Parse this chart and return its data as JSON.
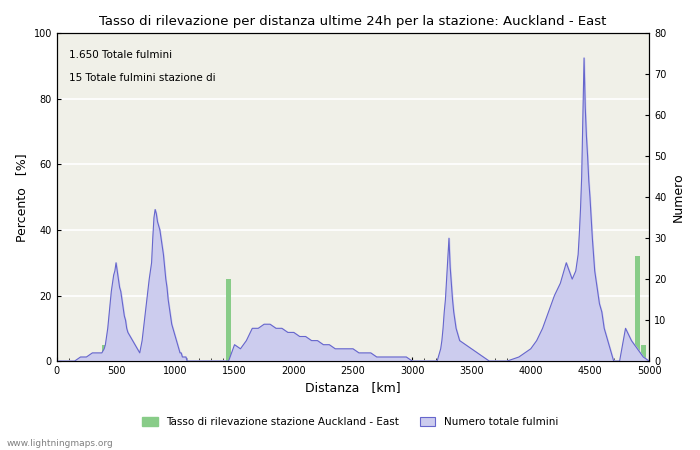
{
  "title": "Tasso di rilevazione per distanza ultime 24h per la stazione: Auckland - East",
  "xlabel": "Distanza   [km]",
  "ylabel_left": "Percento   [%]",
  "ylabel_right": "Numero",
  "annotation1": "1.650 Totale fulmini",
  "annotation2": "15 Totale fulmini stazione di",
  "xlim": [
    0,
    5000
  ],
  "ylim_left": [
    0,
    100
  ],
  "ylim_right": [
    0,
    80
  ],
  "yticks_left": [
    0,
    20,
    40,
    60,
    80,
    100
  ],
  "yticks_right": [
    0,
    10,
    20,
    30,
    40,
    50,
    60,
    70,
    80
  ],
  "xticks": [
    0,
    500,
    1000,
    1500,
    2000,
    2500,
    3000,
    3500,
    4000,
    4500,
    5000
  ],
  "bg_color": "#ffffff",
  "plot_bg_color": "#f0f0e8",
  "grid_color": "#ffffff",
  "blue_line_color": "#6666cc",
  "blue_fill_color": "#ccccee",
  "green_bar_color": "#88cc88",
  "watermark": "www.lightningmaps.org",
  "legend_label1": "Tasso di rilevazione stazione Auckland - East",
  "legend_label2": "Numero totale fulmini",
  "blue_line_x": [
    0,
    50,
    100,
    150,
    200,
    250,
    300,
    350,
    380,
    400,
    410,
    420,
    430,
    440,
    450,
    460,
    470,
    480,
    490,
    500,
    510,
    520,
    530,
    540,
    550,
    560,
    570,
    580,
    590,
    600,
    620,
    640,
    660,
    680,
    700,
    720,
    740,
    760,
    780,
    800,
    810,
    820,
    830,
    840,
    850,
    860,
    870,
    880,
    890,
    900,
    910,
    920,
    930,
    940,
    950,
    960,
    970,
    980,
    990,
    1000,
    1010,
    1020,
    1030,
    1040,
    1050,
    1060,
    1070,
    1080,
    1090,
    1100,
    1150,
    1200,
    1250,
    1300,
    1350,
    1400,
    1450,
    1500,
    1550,
    1600,
    1650,
    1700,
    1750,
    1800,
    1850,
    1900,
    1950,
    2000,
    2050,
    2100,
    2150,
    2200,
    2250,
    2300,
    2350,
    2400,
    2450,
    2500,
    2550,
    2600,
    2650,
    2700,
    2750,
    2800,
    2850,
    2900,
    2950,
    3000,
    3050,
    3100,
    3150,
    3200,
    3210,
    3220,
    3230,
    3240,
    3250,
    3260,
    3270,
    3280,
    3290,
    3300,
    3310,
    3320,
    3330,
    3340,
    3350,
    3360,
    3370,
    3380,
    3390,
    3400,
    3450,
    3500,
    3550,
    3600,
    3650,
    3700,
    3800,
    3900,
    4000,
    4050,
    4100,
    4150,
    4200,
    4250,
    4300,
    4350,
    4380,
    4400,
    4410,
    4420,
    4430,
    4440,
    4450,
    4460,
    4470,
    4480,
    4490,
    4500,
    4510,
    4520,
    4530,
    4540,
    4550,
    4560,
    4570,
    4580,
    4590,
    4600,
    4610,
    4620,
    4630,
    4640,
    4650,
    4660,
    4670,
    4680,
    4690,
    4700,
    4750,
    4800,
    4850,
    4900,
    4950,
    5000
  ],
  "blue_line_y": [
    0,
    0,
    0,
    0,
    1,
    1,
    2,
    2,
    2,
    3,
    4,
    6,
    8,
    11,
    14,
    17,
    19,
    21,
    22,
    24,
    22,
    20,
    18,
    17,
    15,
    13,
    11,
    10,
    8,
    7,
    6,
    5,
    4,
    3,
    2,
    5,
    10,
    15,
    20,
    24,
    30,
    35,
    37,
    36,
    34,
    33,
    32,
    30,
    28,
    26,
    23,
    20,
    18,
    15,
    13,
    11,
    9,
    8,
    7,
    6,
    5,
    4,
    3,
    2,
    2,
    1,
    1,
    1,
    1,
    0,
    0,
    0,
    0,
    0,
    0,
    0,
    0,
    4,
    3,
    5,
    8,
    8,
    9,
    9,
    8,
    8,
    7,
    7,
    6,
    6,
    5,
    5,
    4,
    4,
    3,
    3,
    3,
    3,
    2,
    2,
    2,
    1,
    1,
    1,
    1,
    1,
    1,
    0,
    0,
    0,
    0,
    0,
    0,
    1,
    2,
    3,
    5,
    8,
    12,
    15,
    20,
    25,
    30,
    23,
    19,
    15,
    12,
    10,
    8,
    7,
    6,
    5,
    4,
    3,
    2,
    1,
    0,
    0,
    0,
    1,
    3,
    5,
    8,
    12,
    16,
    19,
    24,
    20,
    22,
    26,
    31,
    37,
    45,
    60,
    74,
    62,
    55,
    50,
    44,
    40,
    35,
    30,
    26,
    22,
    20,
    18,
    16,
    14,
    13,
    12,
    10,
    8,
    7,
    6,
    5,
    4,
    3,
    2,
    1,
    0,
    0,
    8,
    5,
    3,
    1,
    0
  ],
  "green_bar_x": [
    400,
    450,
    600,
    750,
    850,
    1450,
    1500,
    4100,
    4200,
    4900,
    4950
  ],
  "green_bar_height": [
    5,
    5,
    2,
    6,
    2,
    25,
    3,
    3,
    2,
    32,
    5
  ],
  "green_bar_width": 40
}
